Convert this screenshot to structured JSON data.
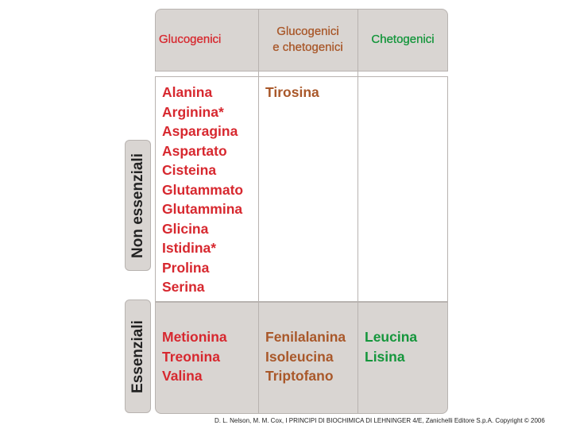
{
  "header": {
    "columns": [
      {
        "lines": [
          "Glucogenici"
        ],
        "color": "#d7282f"
      },
      {
        "lines": [
          "Glucogenici",
          "e chetogenici"
        ],
        "color": "#a9582a"
      },
      {
        "lines": [
          "Chetogenici"
        ],
        "color": "#15963c"
      }
    ]
  },
  "rows": [
    {
      "label": "Non essenziali",
      "cells": [
        [
          "Alanina",
          "Arginina*",
          "Asparagina",
          "Aspartato",
          "Cisteina",
          "Glutammato",
          "Glutammina",
          "Glicina",
          "Istidina*",
          "Prolina",
          "Serina"
        ],
        [
          "Tirosina"
        ],
        []
      ]
    },
    {
      "label": "Essenziali",
      "cells": [
        [
          "Metionina",
          "Treonina",
          "Valina"
        ],
        [
          "Fenilalanina",
          "Isoleucina",
          "Triptofano"
        ],
        [
          "Leucina",
          "Lisina"
        ]
      ]
    }
  ],
  "footer": "D. L. Nelson, M. M. Cox, I PRINCIPI DI BIOCHIMICA DI LEHNINGER 4/E, Zanichelli Editore S.p.A. Copyright © 2006"
}
